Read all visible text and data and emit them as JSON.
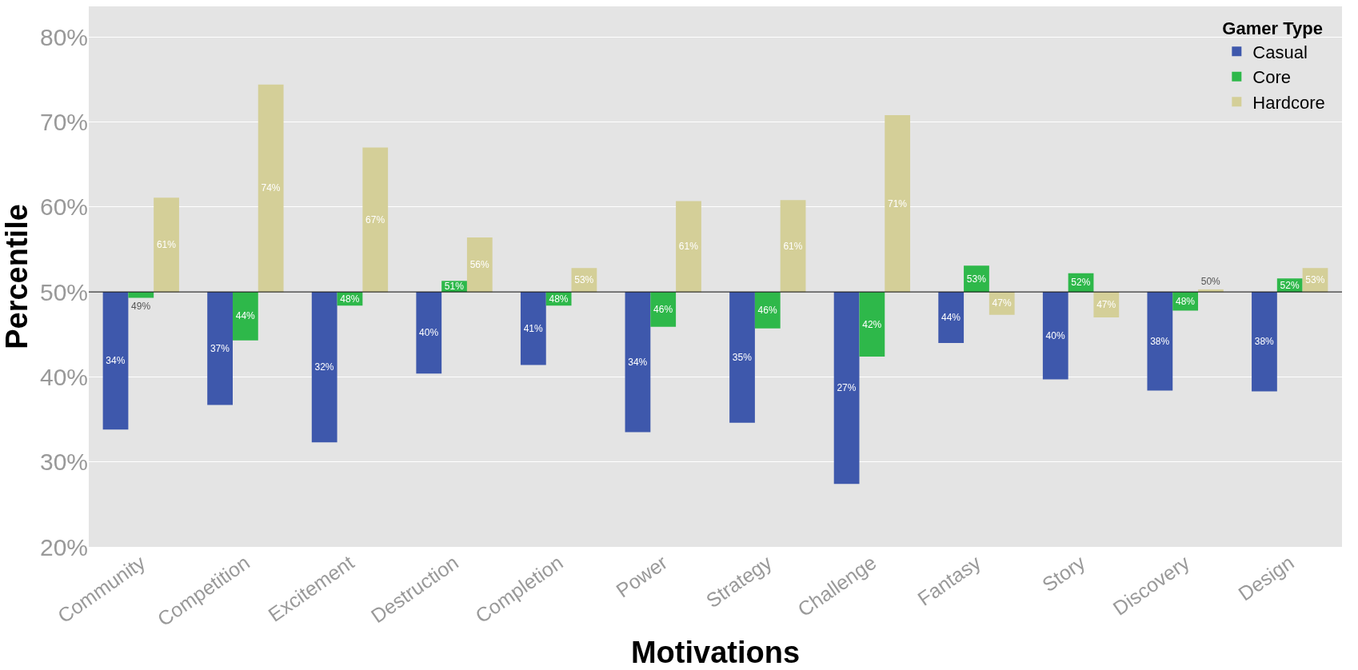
{
  "chart_data": {
    "type": "bar",
    "xlabel": "Motivations",
    "ylabel": "Percentile",
    "legend_title": "Gamer Type",
    "categories": [
      "Community",
      "Competition",
      "Excitement",
      "Destruction",
      "Completion",
      "Power",
      "Strategy",
      "Challenge",
      "Fantasy",
      "Story",
      "Discovery",
      "Design"
    ],
    "series": [
      {
        "name": "Casual",
        "color": "#3e58ac",
        "base": [
          50,
          50,
          50,
          50,
          50,
          50,
          50,
          50,
          50,
          50,
          50,
          50
        ],
        "values": [
          -16.2,
          -13.3,
          -17.7,
          -9.6,
          -8.6,
          -16.5,
          -15.4,
          -22.6,
          -6.0,
          -10.3,
          -11.6,
          -11.7
        ],
        "value_labels": [
          "34%",
          "37%",
          "32%",
          "40%",
          "41%",
          "34%",
          "35%",
          "27%",
          "44%",
          "40%",
          "38%",
          "38%"
        ]
      },
      {
        "name": "Core",
        "color": "#2eb84a",
        "base": [
          50,
          50,
          50,
          50,
          50,
          50,
          50,
          50,
          50,
          50,
          50,
          50
        ],
        "values": [
          -0.7,
          -5.7,
          -1.6,
          1.3,
          -1.6,
          -4.1,
          -4.3,
          -7.6,
          3.1,
          2.2,
          -2.2,
          1.6
        ],
        "value_labels": [
          "49%",
          "44%",
          "48%",
          "51%",
          "48%",
          "46%",
          "46%",
          "42%",
          "53%",
          "52%",
          "48%",
          "52%"
        ]
      },
      {
        "name": "Hardcore",
        "color": "#d4cf98",
        "base": [
          50,
          50,
          50,
          50,
          50,
          50,
          50,
          50,
          50,
          50,
          50,
          50
        ],
        "values": [
          11.1,
          24.4,
          17.0,
          6.4,
          2.8,
          10.7,
          10.8,
          20.8,
          -2.7,
          -3.0,
          0.3,
          2.8
        ],
        "value_labels": [
          "61%",
          "74%",
          "67%",
          "56%",
          "53%",
          "61%",
          "61%",
          "71%",
          "47%",
          "47%",
          "50%",
          "53%"
        ]
      }
    ],
    "ylim": [
      20,
      83.6
    ],
    "yticks": [
      {
        "value": 20,
        "label": "20%"
      },
      {
        "value": 30,
        "label": "30%"
      },
      {
        "value": 40,
        "label": "40%"
      },
      {
        "value": 50,
        "label": "50%"
      },
      {
        "value": 60,
        "label": "60%"
      },
      {
        "value": 70,
        "label": "70%"
      },
      {
        "value": 80,
        "label": "80%"
      }
    ],
    "ref_lines": [
      {
        "axis": "y",
        "value": 50,
        "label": null,
        "color": "#000000"
      }
    ],
    "grid": "y",
    "legend": "top right"
  }
}
